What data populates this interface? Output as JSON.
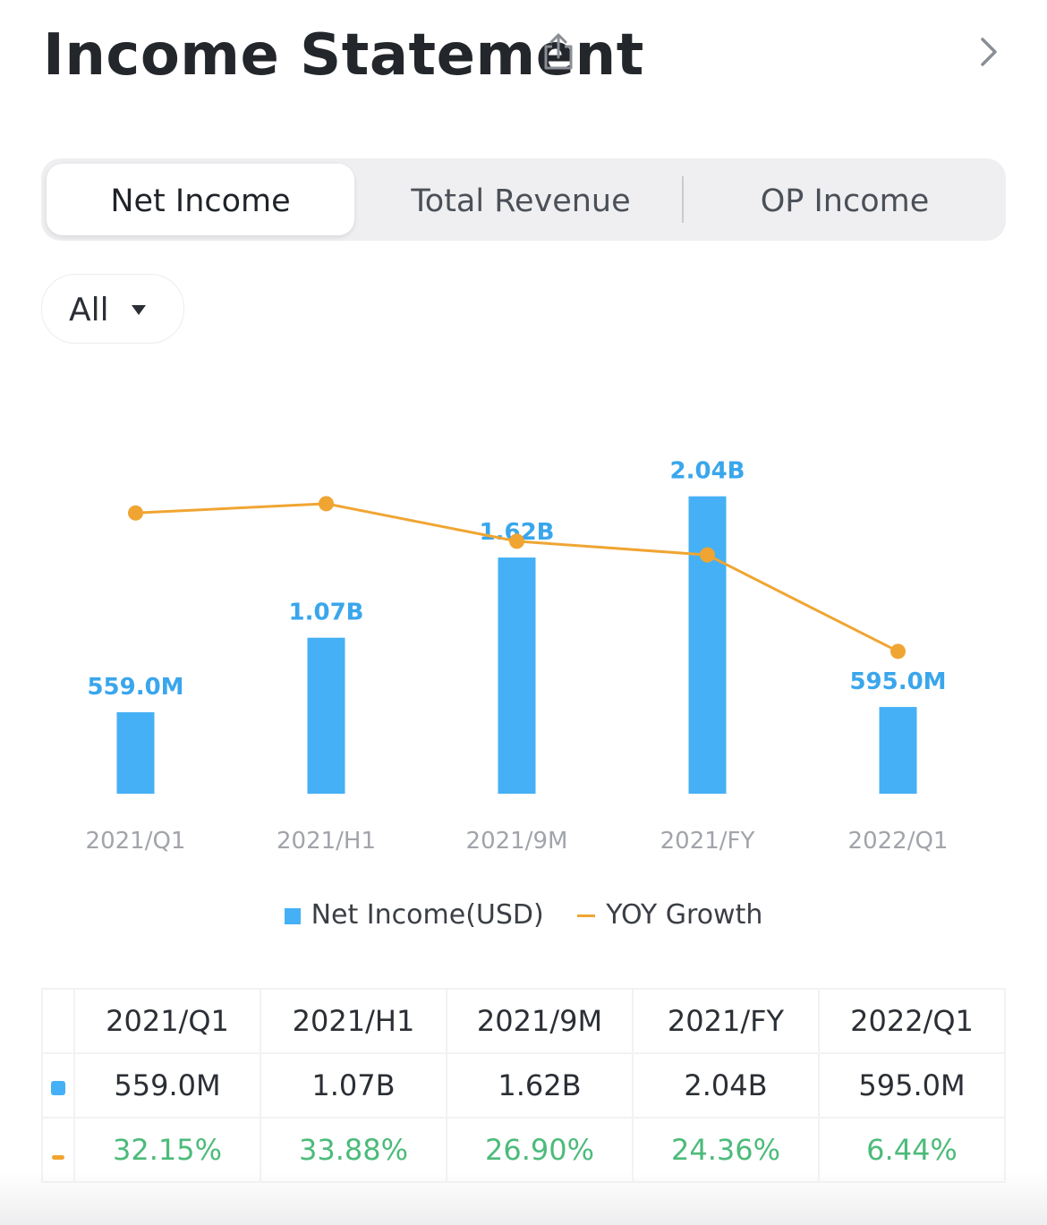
{
  "header": {
    "title": "Income Statement"
  },
  "tabs": [
    "Net Income",
    "Total Revenue",
    "OP Income"
  ],
  "filter": {
    "label": "All"
  },
  "colors": {
    "bar": "#45b0f5",
    "line": "#f0a532",
    "growth_text": "#4cbb7a",
    "bar_label": "#3aa6ec"
  },
  "chart_data": {
    "type": "bar",
    "categories": [
      "2021/Q1",
      "2021/H1",
      "2021/9M",
      "2021/FY",
      "2022/Q1"
    ],
    "series": [
      {
        "name": "Net Income(USD)",
        "type": "bar",
        "values": [
          559.0,
          1070,
          1620,
          2040,
          595.0
        ],
        "unit": "M USD",
        "labels": [
          "559.0M",
          "1.07B",
          "1.62B",
          "2.04B",
          "595.0M"
        ]
      },
      {
        "name": "YOY Growth",
        "type": "line",
        "values": [
          32.15,
          33.88,
          26.9,
          24.36,
          6.44
        ],
        "unit": "%"
      }
    ],
    "ylim_bar": [
      0,
      2400
    ],
    "ylim_line": [
      -20,
      45
    ],
    "legend": [
      "Net Income(USD)",
      "YOY Growth"
    ],
    "legend_position": "bottom"
  },
  "table": {
    "headers": [
      "2021/Q1",
      "2021/H1",
      "2021/9M",
      "2021/FY",
      "2022/Q1"
    ],
    "values": [
      "559.0M",
      "1.07B",
      "1.62B",
      "2.04B",
      "595.0M"
    ],
    "growth": [
      "32.15%",
      "33.88%",
      "26.90%",
      "24.36%",
      "6.44%"
    ]
  }
}
